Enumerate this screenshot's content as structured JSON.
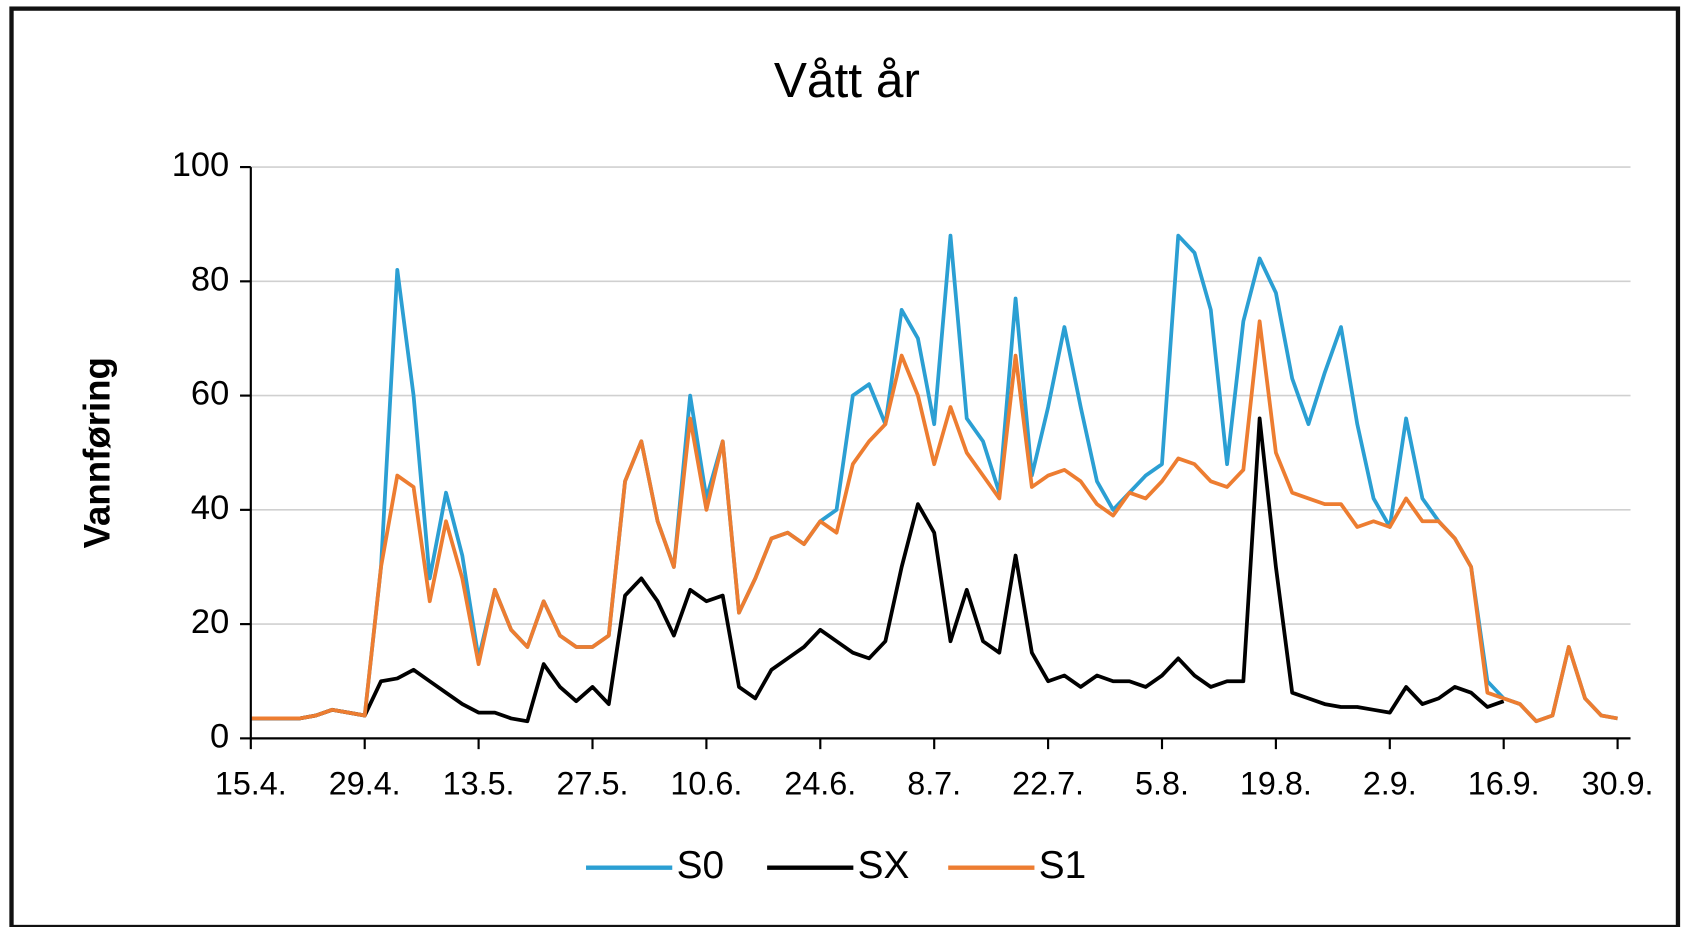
{
  "chart_data": {
    "type": "line",
    "title": "Vått år",
    "y_label": "Vannføring",
    "x": [
      0,
      2,
      4,
      6,
      8,
      10,
      12,
      14,
      16,
      18,
      20,
      22,
      24,
      26,
      28,
      30,
      32,
      34,
      36,
      38,
      40,
      42,
      44,
      46,
      48,
      50,
      52,
      54,
      56,
      58,
      60,
      62,
      64,
      66,
      68,
      70,
      72,
      74,
      76,
      78,
      80,
      82,
      84,
      86,
      88,
      90,
      92,
      94,
      96,
      98,
      100,
      102,
      104,
      106,
      108,
      110,
      112,
      114,
      116,
      118,
      120,
      122,
      124,
      126,
      128,
      130,
      132,
      134,
      136,
      138,
      140,
      142,
      144,
      146,
      148,
      150,
      152,
      154,
      156,
      158,
      160,
      162,
      164,
      166,
      168
    ],
    "xlim": [
      0,
      168
    ],
    "xticks": [
      {
        "value": 0,
        "label": "15.4."
      },
      {
        "value": 14,
        "label": "29.4."
      },
      {
        "value": 28,
        "label": "13.5."
      },
      {
        "value": 42,
        "label": "27.5."
      },
      {
        "value": 56,
        "label": "10.6."
      },
      {
        "value": 70,
        "label": "24.6."
      },
      {
        "value": 84,
        "label": "8.7."
      },
      {
        "value": 98,
        "label": "22.7."
      },
      {
        "value": 112,
        "label": "5.8."
      },
      {
        "value": 126,
        "label": "19.8."
      },
      {
        "value": 140,
        "label": "2.9."
      },
      {
        "value": 154,
        "label": "16.9."
      },
      {
        "value": 168,
        "label": "30.9."
      }
    ],
    "ylim": [
      0,
      100
    ],
    "yticks": [
      0,
      20,
      40,
      60,
      80,
      100
    ],
    "grid": true,
    "legend": "bottom",
    "series": [
      {
        "name": "S0",
        "color": "#2b9fd3",
        "values": [
          3.5,
          3.5,
          3.5,
          3.5,
          4,
          5,
          4.5,
          4,
          30,
          82,
          60,
          28,
          43,
          32,
          14,
          26,
          19,
          16,
          24,
          18,
          16,
          16,
          18,
          45,
          52,
          38,
          30,
          60,
          42,
          52,
          22,
          28,
          35,
          36,
          34,
          38,
          40,
          60,
          62,
          55,
          75,
          70,
          55,
          88,
          56,
          52,
          43,
          77,
          46,
          58,
          72,
          58,
          45,
          40,
          43,
          46,
          48,
          88,
          85,
          75,
          48,
          73,
          84,
          78,
          63,
          55,
          64,
          72,
          55,
          42,
          37,
          56,
          42,
          38,
          35,
          30,
          10,
          7,
          6,
          3,
          4,
          16,
          7,
          4,
          3.5
        ]
      },
      {
        "name": "SX",
        "color": "#000000",
        "values": [
          3.5,
          3.5,
          3.5,
          3.5,
          4,
          5,
          4.5,
          4,
          10,
          10.5,
          12,
          10,
          8,
          6,
          4.5,
          4.5,
          3.5,
          3,
          13,
          9,
          6.5,
          9,
          6,
          25,
          28,
          24,
          18,
          26,
          24,
          25,
          9,
          7,
          12,
          14,
          16,
          19,
          17,
          15,
          14,
          17,
          30,
          41,
          36,
          17,
          26,
          17,
          15,
          32,
          15,
          10,
          11,
          9,
          11,
          10,
          10,
          9,
          11,
          14,
          11,
          9,
          10,
          10,
          56,
          30,
          8,
          7,
          6,
          5.5,
          5.5,
          5,
          4.5,
          9,
          6,
          7,
          9,
          8,
          5.5,
          6.5,
          null,
          null,
          null,
          null,
          null,
          null,
          null
        ]
      },
      {
        "name": "S1",
        "color": "#ed7d31",
        "values": [
          3.5,
          3.5,
          3.5,
          3.5,
          4,
          5,
          4.5,
          4,
          30,
          46,
          44,
          24,
          38,
          28,
          13,
          26,
          19,
          16,
          24,
          18,
          16,
          16,
          18,
          45,
          52,
          38,
          30,
          56,
          40,
          52,
          22,
          28,
          35,
          36,
          34,
          38,
          36,
          48,
          52,
          55,
          67,
          60,
          48,
          58,
          50,
          46,
          42,
          67,
          44,
          46,
          47,
          45,
          41,
          39,
          43,
          42,
          45,
          49,
          48,
          45,
          44,
          47,
          73,
          50,
          43,
          42,
          41,
          41,
          37,
          38,
          37,
          42,
          38,
          38,
          35,
          30,
          8,
          7,
          6,
          3,
          4,
          16,
          7,
          4,
          3.5
        ]
      }
    ]
  }
}
